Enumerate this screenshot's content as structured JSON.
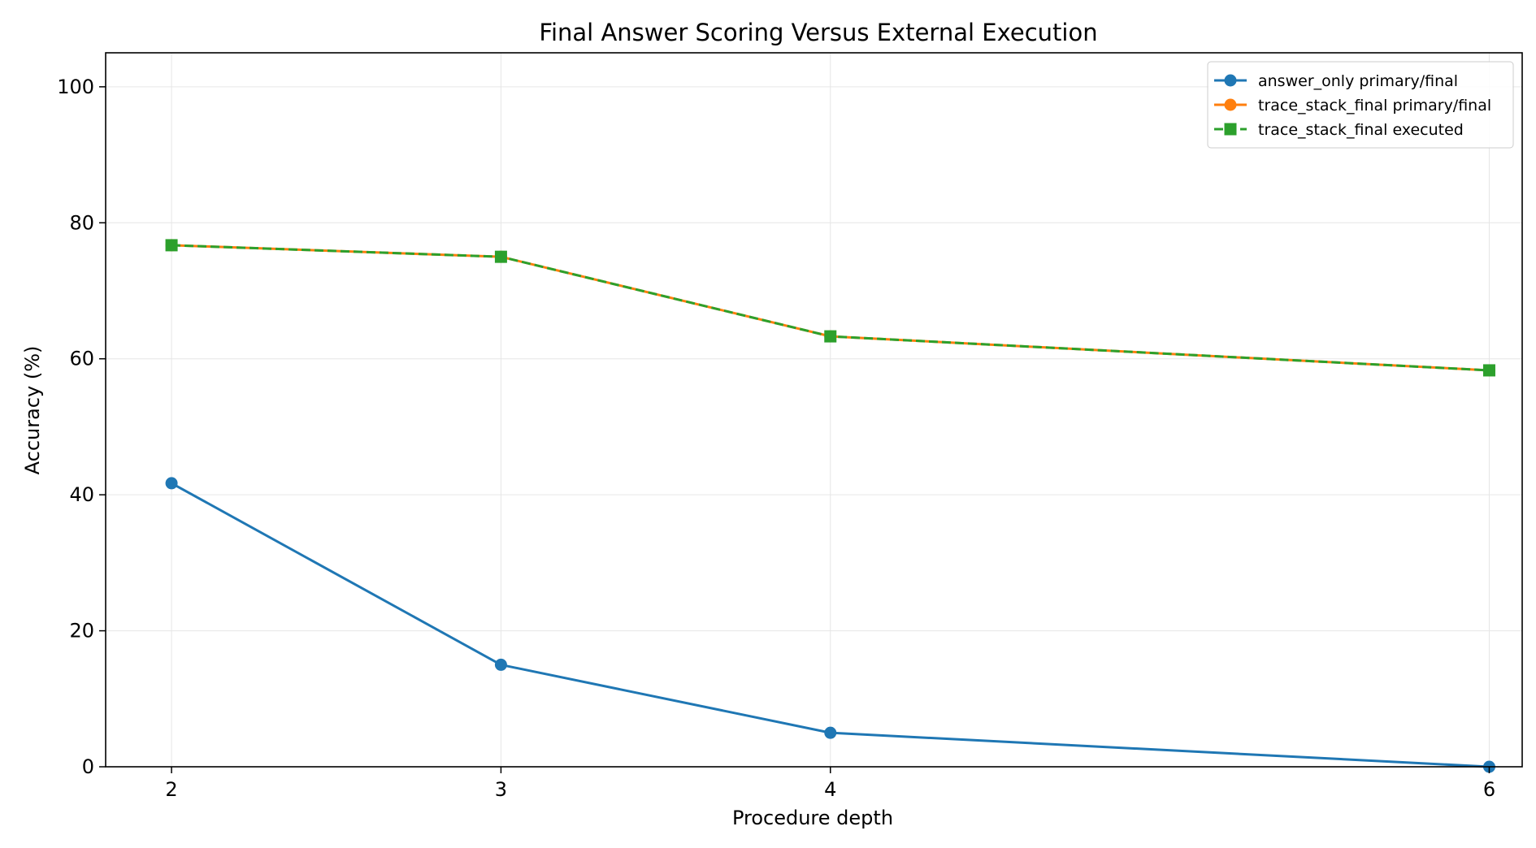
{
  "chart_data": {
    "type": "line",
    "title": "Final Answer Scoring Versus External Execution",
    "xlabel": "Procedure depth",
    "ylabel": "Accuracy (%)",
    "x": [
      2,
      3,
      4,
      6
    ],
    "xticks": [
      "2",
      "3",
      "4",
      "6"
    ],
    "xlim": [
      1.8,
      6.1
    ],
    "ylim": [
      0,
      105
    ],
    "yticks": [
      "0",
      "20",
      "40",
      "60",
      "80",
      "100"
    ],
    "grid": true,
    "legend_position": "top-right",
    "series": [
      {
        "name": "answer_only primary/final",
        "values": [
          41.7,
          15.0,
          5.0,
          0.0
        ],
        "color": "#1f77b4",
        "marker": "circle",
        "linestyle": "solid"
      },
      {
        "name": "trace_stack_final primary/final",
        "values": [
          76.7,
          75.0,
          63.3,
          58.3
        ],
        "color": "#ff7f0e",
        "marker": "circle",
        "linestyle": "solid"
      },
      {
        "name": "trace_stack_final executed",
        "values": [
          76.7,
          75.0,
          63.3,
          58.3
        ],
        "color": "#2ca02c",
        "marker": "square",
        "linestyle": "dashed"
      }
    ]
  }
}
